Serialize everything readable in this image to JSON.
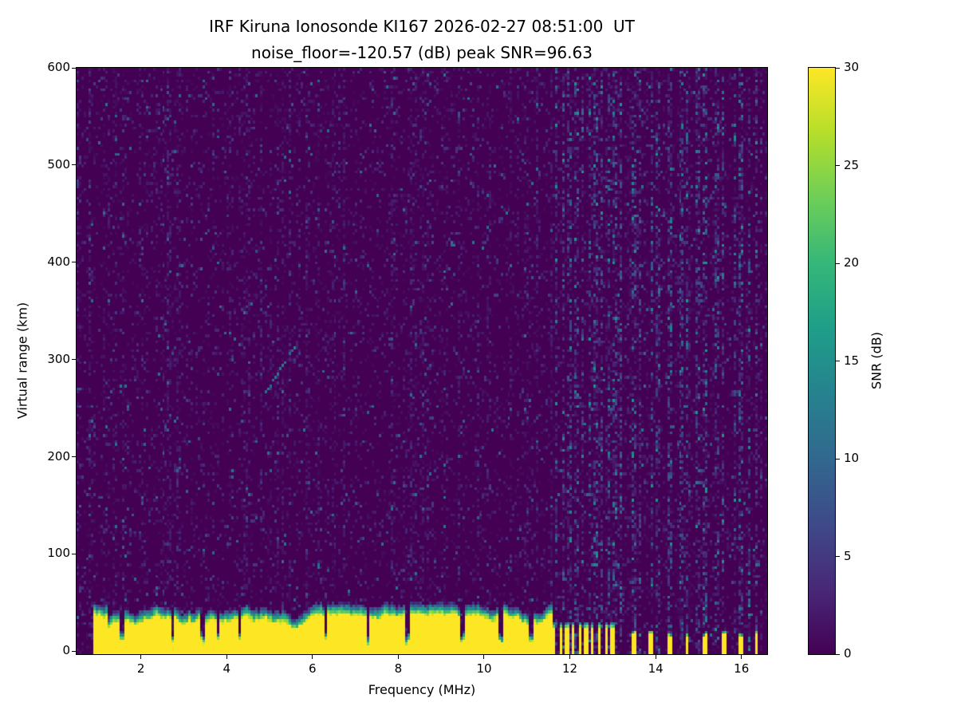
{
  "title": {
    "line1": "IRF Kiruna Ionosonde KI167 2026-02-27 08:51:00  UT",
    "line2": "noise_floor=-120.57 (dB) peak SNR=96.63"
  },
  "axes": {
    "x": {
      "label": "Frequency (MHz)",
      "min": 0.5,
      "max": 16.6,
      "ticks": [
        2,
        4,
        6,
        8,
        10,
        12,
        14,
        16
      ]
    },
    "y": {
      "label": "Virtual range (km)",
      "min": -3,
      "max": 600,
      "ticks": [
        0,
        100,
        200,
        300,
        400,
        500,
        600
      ]
    }
  },
  "colorbar": {
    "label": "SNR (dB)",
    "min": 0,
    "max": 30,
    "ticks": [
      0,
      5,
      10,
      15,
      20,
      25,
      30
    ]
  },
  "colors": {
    "background": "#ffffff",
    "text": "#000000",
    "heatmap_low": "#440154",
    "heatmap_high": "#fde725",
    "viridis": [
      "#440154",
      "#482878",
      "#3e4a89",
      "#31688e",
      "#26828e",
      "#1f9e89",
      "#35b779",
      "#6ece58",
      "#b5de2b",
      "#fde725"
    ]
  },
  "chart_data": {
    "type": "heatmap",
    "title": "IRF Kiruna Ionosonde KI167 2026-02-27 08:51:00  UT",
    "subtitle": "noise_floor=-120.57 (dB) peak SNR=96.63",
    "station": "IRF Kiruna Ionosonde KI167",
    "timestamp_ut": "2026-02-27 08:51:00",
    "noise_floor_db": -120.57,
    "peak_snr_db": 96.63,
    "xlabel": "Frequency (MHz)",
    "ylabel": "Virtual range (km)",
    "x_range_mhz": [
      0.5,
      16.6
    ],
    "y_range_km": [
      -3,
      600
    ],
    "x_ticks": [
      2,
      4,
      6,
      8,
      10,
      12,
      14,
      16
    ],
    "y_ticks": [
      0,
      100,
      200,
      300,
      400,
      500,
      600
    ],
    "colormap": "viridis",
    "snr_scale_db": [
      0,
      30
    ],
    "colorbar_ticks": [
      0,
      5,
      10,
      15,
      20,
      25,
      30
    ],
    "features": {
      "ground_echo_band": {
        "freq_mhz": [
          0.9,
          11.6
        ],
        "range_km": [
          -3,
          30
        ],
        "snr_db": 30,
        "fringe_km": 12
      },
      "broken_echo_band": {
        "freq_mhz": [
          11.6,
          13.1
        ],
        "range_km": [
          -3,
          24
        ],
        "stripe_period_mhz": 0.15,
        "duty": 0.5
      },
      "isolated_echo_bars_mhz": [
        13.48,
        13.9,
        14.32,
        14.74,
        15.16,
        15.58,
        16.0,
        16.35
      ],
      "band_notches_mhz": [
        1.55,
        2.75,
        3.45,
        3.8,
        4.3,
        6.3,
        7.3,
        8.2,
        9.5,
        10.4,
        11.1
      ],
      "rfi_columns_mhz": [
        11.7,
        11.85,
        12.0,
        12.15,
        12.3,
        12.45,
        12.6,
        12.75,
        12.9,
        13.05,
        13.2,
        13.48,
        13.62,
        13.9,
        14.05,
        14.32,
        14.6,
        14.74,
        15.0,
        15.16,
        15.44,
        15.58,
        15.86,
        16.0,
        16.2,
        16.35
      ],
      "weak_trace": {
        "freq_mhz": [
          4.9,
          5.6
        ],
        "range_km": [
          265,
          315
        ],
        "snr_db": 13
      },
      "background_speckle": {
        "density": 0.3,
        "mean_snr_db": 1.6
      }
    },
    "render_seed": 167
  }
}
